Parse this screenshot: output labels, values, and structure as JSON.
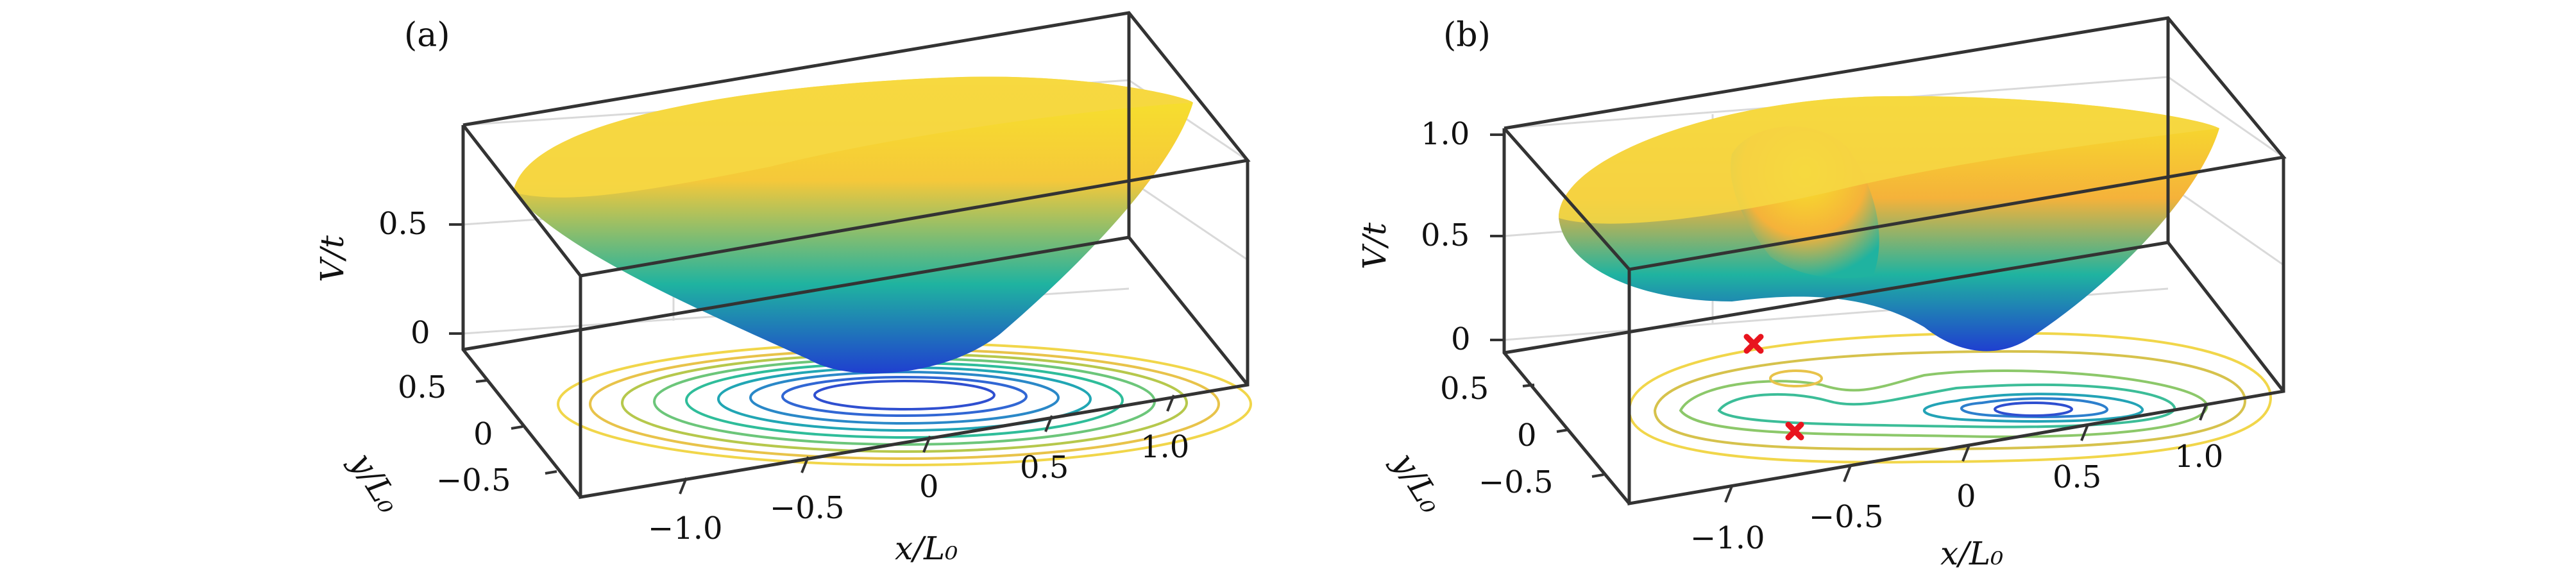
{
  "palette": {
    "surface_low": "#1f3fd0",
    "surface_mid": "#1fb3a0",
    "surface_high": "#f5c83a",
    "surface_top": "#f7e52a",
    "box": "#333333",
    "grid": "#d8d8d8",
    "marker": "#e8141e"
  },
  "chart_data": [
    {
      "type": "surface",
      "panel_label": "(a)",
      "xlabel": "x/L₀",
      "ylabel": "y/L₀",
      "zlabel": "V/t",
      "x_ticks": [
        "−1.0",
        "−0.5",
        "0",
        "0.5",
        "1.0"
      ],
      "y_ticks": [
        "0.5",
        "0",
        "−0.5"
      ],
      "z_ticks": [
        "0.5",
        "0"
      ],
      "xlim": [
        -1.35,
        1.35
      ],
      "ylim": [
        -0.75,
        0.75
      ],
      "zlim": [
        0,
        1.0
      ],
      "minima_markers": []
    },
    {
      "type": "surface",
      "panel_label": "(b)",
      "xlabel": "x/L₀",
      "ylabel": "y/L₀",
      "zlabel": "V/t",
      "x_ticks": [
        "−1.0",
        "−0.5",
        "0",
        "0.5",
        "1.0"
      ],
      "y_ticks": [
        "0.5",
        "0",
        "−0.5"
      ],
      "z_ticks": [
        "1.0",
        "0.5",
        "0"
      ],
      "xlim": [
        -1.35,
        1.35
      ],
      "ylim": [
        -0.75,
        0.75
      ],
      "zlim": [
        0,
        1.1
      ],
      "minima_markers": [
        {
          "x": -0.9,
          "y": 0.45
        },
        {
          "x": -0.55,
          "y": -0.2
        }
      ]
    }
  ]
}
